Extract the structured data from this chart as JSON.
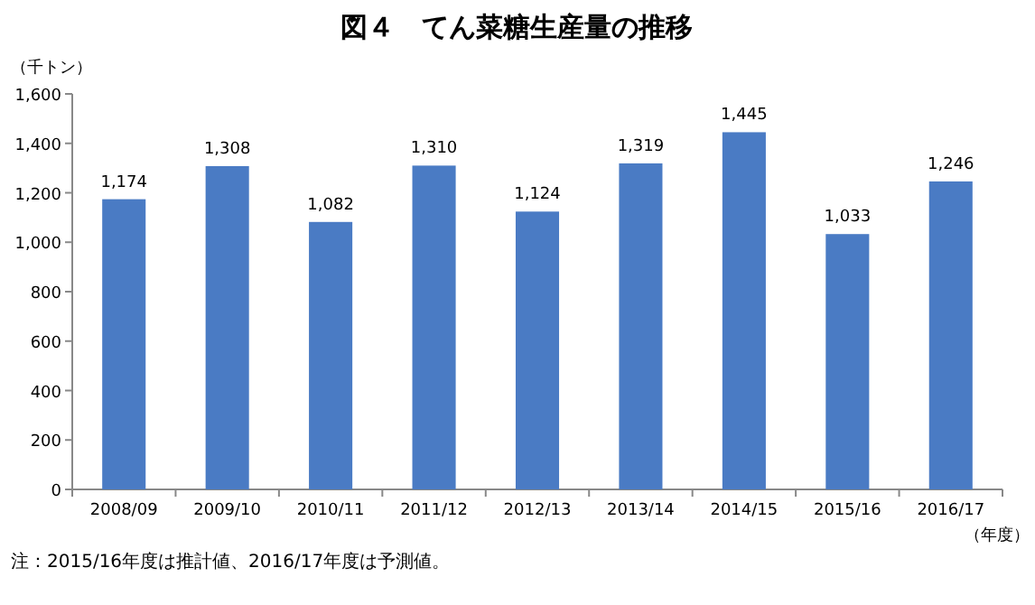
{
  "chart_data": {
    "type": "bar",
    "title": "図４　てん菜糖生産量の推移",
    "ylabel": "（千トン）",
    "xlabel": "（年度）",
    "categories": [
      "2008/09",
      "2009/10",
      "2010/11",
      "2011/12",
      "2012/13",
      "2013/14",
      "2014/15",
      "2015/16",
      "2016/17"
    ],
    "values": [
      1174,
      1308,
      1082,
      1310,
      1124,
      1319,
      1445,
      1033,
      1246
    ],
    "value_labels": [
      "1,174",
      "1,308",
      "1,082",
      "1,310",
      "1,124",
      "1,319",
      "1,445",
      "1,033",
      "1,246"
    ],
    "color": "#4a7bc4",
    "ylim": [
      0,
      1600
    ],
    "yticks": [
      0,
      200,
      400,
      600,
      800,
      {
        "value": 1000,
        "label": "1,000"
      },
      {
        "value": 1200,
        "label": "1,200"
      },
      {
        "value": 1400,
        "label": "1,400"
      },
      {
        "value": 1600,
        "label": "1,600"
      }
    ],
    "grid": false,
    "annotations": [
      "注：2015/16年度は推計値、2016/17年度は予測値。"
    ]
  }
}
